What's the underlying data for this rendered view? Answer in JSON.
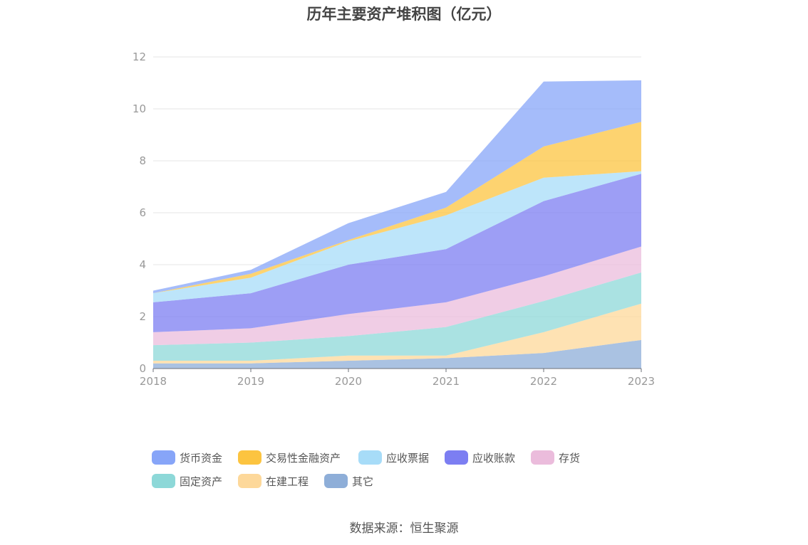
{
  "chart_data": {
    "type": "area",
    "stacked": true,
    "title": "历年主要资产堆积图（亿元）",
    "source": "数据来源：恒生聚源",
    "x": [
      "2018",
      "2019",
      "2020",
      "2021",
      "2022",
      "2023"
    ],
    "ylim": [
      0,
      12
    ],
    "yticks": [
      0,
      2,
      4,
      6,
      8,
      10,
      12
    ],
    "grid": true,
    "legend_position": "bottom",
    "series": [
      {
        "name": "其它",
        "color": "#8eaed8",
        "values": [
          0.2,
          0.2,
          0.3,
          0.4,
          0.6,
          1.1
        ]
      },
      {
        "name": "在建工程",
        "color": "#fdd89a",
        "values": [
          0.1,
          0.1,
          0.2,
          0.1,
          0.8,
          1.4
        ]
      },
      {
        "name": "固定资产",
        "color": "#8dd8d8",
        "values": [
          0.6,
          0.7,
          0.75,
          1.1,
          1.2,
          1.2
        ]
      },
      {
        "name": "存货",
        "color": "#ebbcdc",
        "values": [
          0.5,
          0.55,
          0.85,
          0.95,
          0.95,
          1.0
        ]
      },
      {
        "name": "应收账款",
        "color": "#7c7ef2",
        "values": [
          1.15,
          1.35,
          1.9,
          2.05,
          2.9,
          2.8
        ]
      },
      {
        "name": "应收票据",
        "color": "#a7dcf8",
        "values": [
          0.35,
          0.6,
          0.9,
          1.3,
          0.9,
          0.1
        ]
      },
      {
        "name": "交易性金融资产",
        "color": "#fcc440",
        "values": [
          0.0,
          0.15,
          0.05,
          0.3,
          1.2,
          1.9
        ]
      },
      {
        "name": "货币资金",
        "color": "#87a5f8",
        "values": [
          0.1,
          0.15,
          0.65,
          0.6,
          2.5,
          1.6
        ]
      }
    ],
    "legend_order": [
      "货币资金",
      "交易性金融资产",
      "应收票据",
      "应收账款",
      "存货",
      "固定资产",
      "在建工程",
      "其它"
    ]
  }
}
